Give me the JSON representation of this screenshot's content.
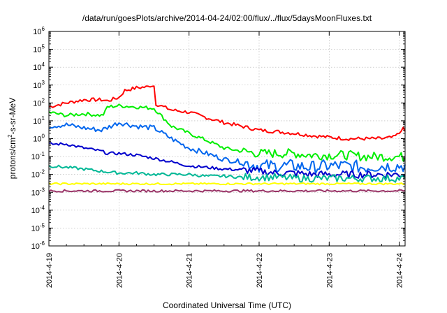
{
  "chart_data": {
    "type": "line",
    "title": "/data/run/goesPlots/archive/2014-04-24/02:00/flux/../flux/5daysMoonFluxes.txt",
    "xlabel": "Coordinated Universal Time (UTC)",
    "ylabel": {
      "prefix": "protons/cm",
      "superscript": "2",
      "suffix": "-s-sr-MeV"
    },
    "x_scale": "time",
    "y_scale": "log",
    "xlim": [
      "2014-04-19T00:00",
      "2014-04-24T02:00"
    ],
    "ylim": [
      1e-06,
      1000000.0
    ],
    "grid": true,
    "x_ticks": [
      "2014-4-19",
      "2014-4-20",
      "2014-4-21",
      "2014-4-22",
      "2014-4-23",
      "2014-4-24"
    ],
    "y_ticks": [
      {
        "value": 1e-06,
        "base": "10",
        "exp": "-6"
      },
      {
        "value": 1e-05,
        "base": "10",
        "exp": "-5"
      },
      {
        "value": 0.0001,
        "base": "10",
        "exp": "-4"
      },
      {
        "value": 0.001,
        "base": "10",
        "exp": "-3"
      },
      {
        "value": 0.01,
        "base": "10",
        "exp": "-2"
      },
      {
        "value": 0.1,
        "base": "10",
        "exp": "-1"
      },
      {
        "value": 1,
        "base": "10",
        "exp": "0"
      },
      {
        "value": 10,
        "base": "10",
        "exp": "1"
      },
      {
        "value": 100,
        "base": "10",
        "exp": "2"
      },
      {
        "value": 1000,
        "base": "10",
        "exp": "3"
      },
      {
        "value": 10000,
        "base": "10",
        "exp": "4"
      },
      {
        "value": 100000,
        "base": "10",
        "exp": "5"
      },
      {
        "value": 1000000,
        "base": "10",
        "exp": "6"
      }
    ],
    "series": [
      {
        "color": "#ff0000",
        "noise": 0.1,
        "points": [
          [
            "2014-04-19T00:00",
            60
          ],
          [
            "2014-04-19T06:00",
            100
          ],
          [
            "2014-04-19T12:00",
            150
          ],
          [
            "2014-04-19T18:00",
            150
          ],
          [
            "2014-04-19T20:00",
            130
          ],
          [
            "2014-04-20T00:00",
            200
          ],
          [
            "2014-04-20T02:00",
            500
          ],
          [
            "2014-04-20T06:00",
            700
          ],
          [
            "2014-04-20T12:00",
            900
          ],
          [
            "2014-04-20T10:00",
            800
          ],
          [
            "2014-04-20T11:00",
            1000
          ],
          [
            "2014-04-20T12:30",
            90
          ],
          [
            "2014-04-20T18:00",
            40
          ],
          [
            "2014-04-21T00:00",
            30
          ],
          [
            "2014-04-21T06:00",
            15
          ],
          [
            "2014-04-21T12:00",
            8
          ],
          [
            "2014-04-21T18:00",
            5
          ],
          [
            "2014-04-22T00:00",
            3
          ],
          [
            "2014-04-22T06:00",
            2.5
          ],
          [
            "2014-04-22T12:00",
            2
          ],
          [
            "2014-04-22T18:00",
            1.5
          ],
          [
            "2014-04-23T00:00",
            1.2
          ],
          [
            "2014-04-23T06:00",
            1.0
          ],
          [
            "2014-04-23T12:00",
            1.0
          ],
          [
            "2014-04-23T18:00",
            1.0
          ],
          [
            "2014-04-23T22:00",
            1.2
          ],
          [
            "2014-04-24T00:00",
            2
          ],
          [
            "2014-04-24T01:00",
            4
          ],
          [
            "2014-04-24T02:00",
            2.5
          ]
        ]
      },
      {
        "color": "#00ee00",
        "noise": 0.1,
        "points": [
          [
            "2014-04-19T00:00",
            30
          ],
          [
            "2014-04-19T06:00",
            20
          ],
          [
            "2014-04-19T12:00",
            25
          ],
          [
            "2014-04-19T18:00",
            20
          ],
          [
            "2014-04-19T19:00",
            25
          ],
          [
            "2014-04-19T20:00",
            60
          ],
          [
            "2014-04-20T00:00",
            70
          ],
          [
            "2014-04-20T06:00",
            60
          ],
          [
            "2014-04-20T12:00",
            50
          ],
          [
            "2014-04-20T18:00",
            5
          ],
          [
            "2014-04-21T00:00",
            2
          ],
          [
            "2014-04-21T06:00",
            0.8
          ],
          [
            "2014-04-21T12:00",
            0.3
          ],
          [
            "2014-04-21T18:00",
            0.2
          ],
          [
            "2014-04-22T00:00",
            0.15
          ],
          [
            "2014-04-22T06:00",
            0.15
          ],
          [
            "2014-04-22T12:00",
            0.15
          ],
          [
            "2014-04-22T18:00",
            0.12
          ],
          [
            "2014-04-23T00:00",
            0.12
          ],
          [
            "2014-04-23T06:00",
            0.12
          ],
          [
            "2014-04-23T12:00",
            0.1
          ],
          [
            "2014-04-23T18:00",
            0.1
          ],
          [
            "2014-04-24T00:00",
            0.1
          ],
          [
            "2014-04-24T02:00",
            0.09
          ]
        ]
      },
      {
        "color": "#0066ee",
        "noise": 0.14,
        "points": [
          [
            "2014-04-19T00:00",
            5
          ],
          [
            "2014-04-19T06:00",
            6
          ],
          [
            "2014-04-19T12:00",
            4
          ],
          [
            "2014-04-19T18:00",
            3
          ],
          [
            "2014-04-20T00:00",
            8
          ],
          [
            "2014-04-20T06:00",
            5
          ],
          [
            "2014-04-20T12:00",
            4
          ],
          [
            "2014-04-20T18:00",
            1
          ],
          [
            "2014-04-21T00:00",
            0.3
          ],
          [
            "2014-04-21T06:00",
            0.15
          ],
          [
            "2014-04-21T12:00",
            0.07
          ],
          [
            "2014-04-21T18:00",
            0.05
          ],
          [
            "2014-04-22T00:00",
            0.03
          ],
          [
            "2014-04-22T06:00",
            0.03
          ],
          [
            "2014-04-22T12:00",
            0.03
          ],
          [
            "2014-04-22T18:00",
            0.025
          ],
          [
            "2014-04-23T00:00",
            0.03
          ],
          [
            "2014-04-23T06:00",
            0.03
          ],
          [
            "2014-04-23T12:00",
            0.025
          ],
          [
            "2014-04-23T18:00",
            0.03
          ],
          [
            "2014-04-24T00:00",
            0.03
          ],
          [
            "2014-04-24T02:00",
            0.03
          ]
        ]
      },
      {
        "color": "#0000cc",
        "noise": 0.08,
        "points": [
          [
            "2014-04-19T00:00",
            0.5
          ],
          [
            "2014-04-19T06:00",
            0.5
          ],
          [
            "2014-04-19T12:00",
            0.3
          ],
          [
            "2014-04-19T18:00",
            0.2
          ],
          [
            "2014-04-19T20:00",
            0.15
          ],
          [
            "2014-04-20T00:00",
            0.15
          ],
          [
            "2014-04-20T06:00",
            0.12
          ],
          [
            "2014-04-20T12:00",
            0.08
          ],
          [
            "2014-04-20T18:00",
            0.05
          ],
          [
            "2014-04-21T00:00",
            0.03
          ],
          [
            "2014-04-21T06:00",
            0.025
          ],
          [
            "2014-04-21T12:00",
            0.02
          ],
          [
            "2014-04-21T18:00",
            0.018
          ],
          [
            "2014-04-22T00:00",
            0.015
          ],
          [
            "2014-04-22T06:00",
            0.012
          ],
          [
            "2014-04-22T12:00",
            0.012
          ],
          [
            "2014-04-22T18:00",
            0.01
          ],
          [
            "2014-04-23T00:00",
            0.01
          ],
          [
            "2014-04-23T06:00",
            0.01
          ],
          [
            "2014-04-23T12:00",
            0.01
          ],
          [
            "2014-04-23T18:00",
            0.01
          ],
          [
            "2014-04-24T00:00",
            0.01
          ],
          [
            "2014-04-24T02:00",
            0.01
          ]
        ]
      },
      {
        "color": "#00b896",
        "noise": 0.08,
        "points": [
          [
            "2014-04-19T00:00",
            0.03
          ],
          [
            "2014-04-19T06:00",
            0.025
          ],
          [
            "2014-04-19T12:00",
            0.02
          ],
          [
            "2014-04-19T18:00",
            0.015
          ],
          [
            "2014-04-20T00:00",
            0.012
          ],
          [
            "2014-04-20T06:00",
            0.012
          ],
          [
            "2014-04-20T12:00",
            0.01
          ],
          [
            "2014-04-20T18:00",
            0.01
          ],
          [
            "2014-04-21T00:00",
            0.01
          ],
          [
            "2014-04-21T06:00",
            0.008
          ],
          [
            "2014-04-21T12:00",
            0.008
          ],
          [
            "2014-04-21T18:00",
            0.007
          ],
          [
            "2014-04-22T00:00",
            0.007
          ],
          [
            "2014-04-22T06:00",
            0.007
          ],
          [
            "2014-04-22T12:00",
            0.006
          ],
          [
            "2014-04-22T18:00",
            0.006
          ],
          [
            "2014-04-23T00:00",
            0.006
          ],
          [
            "2014-04-23T06:00",
            0.006
          ],
          [
            "2014-04-23T12:00",
            0.006
          ],
          [
            "2014-04-23T18:00",
            0.006
          ],
          [
            "2014-04-24T00:00",
            0.006
          ],
          [
            "2014-04-24T02:00",
            0.006
          ]
        ]
      },
      {
        "color": "#ffff00",
        "noise": 0.05,
        "points": [
          [
            "2014-04-19T00:00",
            0.003
          ],
          [
            "2014-04-20T00:00",
            0.003
          ],
          [
            "2014-04-21T00:00",
            0.003
          ],
          [
            "2014-04-22T00:00",
            0.003
          ],
          [
            "2014-04-23T00:00",
            0.003
          ],
          [
            "2014-04-24T02:00",
            0.003
          ]
        ]
      },
      {
        "color": "#993366",
        "noise": 0.06,
        "points": [
          [
            "2014-04-19T00:00",
            0.0012
          ],
          [
            "2014-04-20T00:00",
            0.0012
          ],
          [
            "2014-04-21T00:00",
            0.0012
          ],
          [
            "2014-04-22T00:00",
            0.0012
          ],
          [
            "2014-04-23T00:00",
            0.0012
          ],
          [
            "2014-04-24T02:00",
            0.0012
          ]
        ]
      }
    ]
  }
}
